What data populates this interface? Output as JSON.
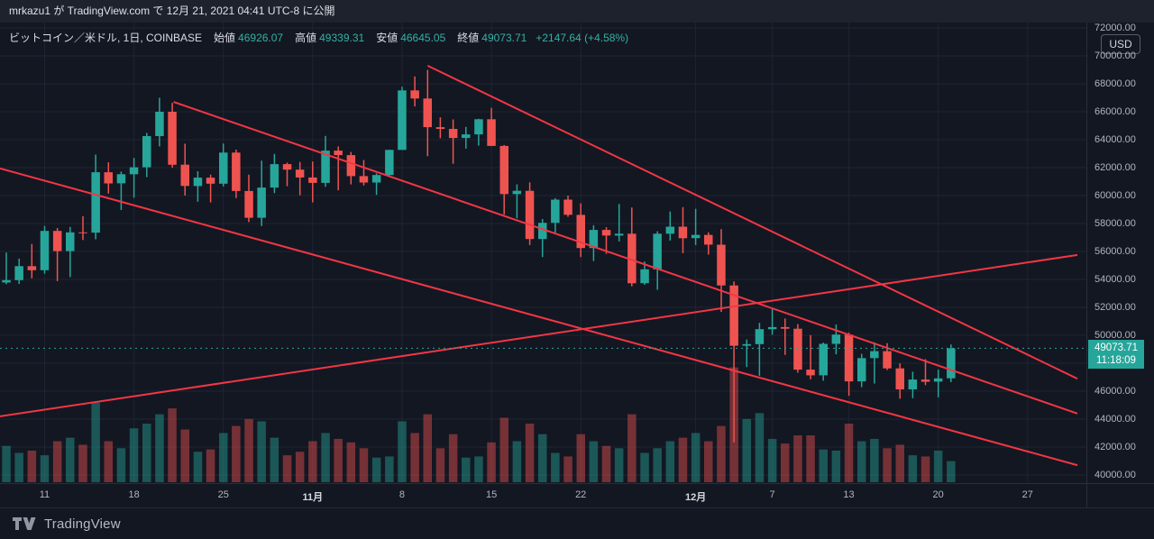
{
  "header": {
    "publish_text": "mrkazu1 が TradingView.com で 12月 21, 2021 04:41 UTC-8 に公開"
  },
  "legend": {
    "symbol_line": "ビットコイン／米ドル, 1日, COINBASE",
    "open_label": "始値",
    "open": "46926.07",
    "high_label": "高値",
    "high": "49339.31",
    "low_label": "安値",
    "low": "46645.05",
    "close_label": "終値",
    "close": "49073.71",
    "change": "+2147.64 (+4.58%)"
  },
  "price_axis": {
    "currency_badge": "USD",
    "last_price": "49073.71",
    "countdown": "11:18:09"
  },
  "footer": {
    "brand": "TradingView"
  },
  "colors": {
    "bg": "#131722",
    "panel": "#1e222d",
    "grid": "#1e2433",
    "up": "#26a69a",
    "down": "#ef5350",
    "trend": "#f23645",
    "axis_text": "#b2b5be",
    "last_price_line": "#26a69a",
    "badge_bg": "#26a69a"
  },
  "chart_data": {
    "type": "candlestick",
    "title": "ビットコイン／米ドル, 1日, COINBASE",
    "ylabel": "USD",
    "ylim": [
      39420,
      72390
    ],
    "y_ticks": [
      40000,
      42000,
      44000,
      46000,
      48000,
      50000,
      52000,
      54000,
      56000,
      58000,
      60000,
      62000,
      64000,
      66000,
      68000,
      70000,
      72000
    ],
    "x_ticks": [
      {
        "index": 3,
        "label": "11",
        "bold": false
      },
      {
        "index": 10,
        "label": "18",
        "bold": false
      },
      {
        "index": 17,
        "label": "25",
        "bold": false
      },
      {
        "index": 24,
        "label": "11月",
        "bold": true
      },
      {
        "index": 31,
        "label": "8",
        "bold": false
      },
      {
        "index": 38,
        "label": "15",
        "bold": false
      },
      {
        "index": 45,
        "label": "22",
        "bold": false
      },
      {
        "index": 54,
        "label": "12月",
        "bold": true
      },
      {
        "index": 60,
        "label": "7",
        "bold": false
      },
      {
        "index": 66,
        "label": "13",
        "bold": false
      },
      {
        "index": 73,
        "label": "20",
        "bold": false
      },
      {
        "index": 80,
        "label": "27",
        "bold": false
      }
    ],
    "candle_fields": [
      "date",
      "open",
      "high",
      "low",
      "close",
      "volume_rel"
    ],
    "candles": [
      [
        "10-08",
        53785,
        55922,
        53661,
        53951,
        0.31
      ],
      [
        "10-09",
        53951,
        55489,
        53675,
        54949,
        0.25
      ],
      [
        "10-10",
        54949,
        56545,
        54080,
        54659,
        0.27
      ],
      [
        "10-11",
        54659,
        57833,
        54415,
        57471,
        0.23
      ],
      [
        "10-12",
        57471,
        57680,
        53879,
        56023,
        0.35
      ],
      [
        "10-13",
        56023,
        57755,
        54167,
        57367,
        0.38
      ],
      [
        "10-14",
        57367,
        58520,
        56818,
        57347,
        0.32
      ],
      [
        "10-15",
        57347,
        62933,
        56868,
        61672,
        0.68
      ],
      [
        "10-16",
        61672,
        62378,
        60150,
        60875,
        0.35
      ],
      [
        "10-17",
        60875,
        61718,
        58963,
        61528,
        0.29
      ],
      [
        "10-18",
        61528,
        62695,
        59844,
        62026,
        0.46
      ],
      [
        "10-19",
        62026,
        64486,
        61322,
        64261,
        0.5
      ],
      [
        "10-20",
        64261,
        66999,
        63520,
        66002,
        0.58
      ],
      [
        "10-21",
        66002,
        66639,
        62000,
        62210,
        0.63
      ],
      [
        "10-22",
        62210,
        63715,
        60000,
        60688,
        0.45
      ],
      [
        "10-23",
        60688,
        61743,
        59562,
        61286,
        0.26
      ],
      [
        "10-24",
        61286,
        61500,
        59510,
        60852,
        0.28
      ],
      [
        "10-25",
        60852,
        63729,
        60650,
        63078,
        0.42
      ],
      [
        "10-26",
        63078,
        63293,
        59817,
        60328,
        0.48
      ],
      [
        "10-27",
        60328,
        61496,
        58100,
        58413,
        0.54
      ],
      [
        "10-28",
        58413,
        62499,
        57820,
        60575,
        0.52
      ],
      [
        "10-29",
        60575,
        62980,
        60174,
        62253,
        0.38
      ],
      [
        "10-30",
        62253,
        62359,
        60673,
        61859,
        0.23
      ],
      [
        "10-31",
        61859,
        62405,
        60025,
        61299,
        0.26
      ],
      [
        "11-01",
        61299,
        62437,
        59508,
        60911,
        0.35
      ],
      [
        "11-02",
        60911,
        64270,
        60624,
        63219,
        0.42
      ],
      [
        "11-03",
        63219,
        63516,
        60382,
        62896,
        0.37
      ],
      [
        "11-04",
        62896,
        63123,
        60799,
        61395,
        0.34
      ],
      [
        "11-05",
        61395,
        62541,
        60721,
        60937,
        0.29
      ],
      [
        "11-06",
        60937,
        61590,
        60050,
        61470,
        0.21
      ],
      [
        "11-07",
        61470,
        63286,
        61322,
        63273,
        0.22
      ],
      [
        "11-08",
        63273,
        67789,
        63273,
        67528,
        0.52
      ],
      [
        "11-09",
        67528,
        68530,
        66382,
        66947,
        0.42
      ],
      [
        "11-10",
        66947,
        69000,
        62822,
        64898,
        0.58
      ],
      [
        "11-11",
        64898,
        65600,
        64100,
        64774,
        0.29
      ],
      [
        "11-12",
        64774,
        65450,
        62278,
        64122,
        0.41
      ],
      [
        "11-13",
        64122,
        64919,
        63360,
        64380,
        0.21
      ],
      [
        "11-14",
        64380,
        65495,
        63576,
        65466,
        0.22
      ],
      [
        "11-15",
        65466,
        66280,
        63548,
        63557,
        0.34
      ],
      [
        "11-16",
        63557,
        63617,
        58638,
        60110,
        0.55
      ],
      [
        "11-17",
        60110,
        60800,
        58373,
        60344,
        0.35
      ],
      [
        "11-18",
        60344,
        60948,
        56458,
        56891,
        0.5
      ],
      [
        "11-19",
        56891,
        58320,
        55600,
        58052,
        0.41
      ],
      [
        "11-20",
        58052,
        59820,
        57353,
        59707,
        0.25
      ],
      [
        "11-21",
        59707,
        60000,
        58486,
        58622,
        0.22
      ],
      [
        "11-22",
        58622,
        59444,
        55600,
        56247,
        0.41
      ],
      [
        "11-23",
        56247,
        57875,
        55317,
        57541,
        0.35
      ],
      [
        "11-24",
        57541,
        57735,
        55837,
        57138,
        0.31
      ],
      [
        "11-25",
        57138,
        59398,
        56719,
        57274,
        0.29
      ],
      [
        "11-26",
        57274,
        59150,
        53500,
        53726,
        0.58
      ],
      [
        "11-27",
        53726,
        55280,
        53610,
        54721,
        0.25
      ],
      [
        "11-28",
        54721,
        57445,
        53256,
        57274,
        0.29
      ],
      [
        "11-29",
        57274,
        58865,
        56780,
        57776,
        0.35
      ],
      [
        "11-30",
        57776,
        59176,
        55875,
        56950,
        0.38
      ],
      [
        "12-01",
        56950,
        59053,
        56458,
        57184,
        0.42
      ],
      [
        "12-02",
        57184,
        57375,
        55777,
        56485,
        0.35
      ],
      [
        "12-03",
        56485,
        57600,
        51680,
        53569,
        0.48
      ],
      [
        "12-04",
        53569,
        53859,
        42333,
        49253,
        0.98
      ],
      [
        "12-05",
        49253,
        49699,
        47727,
        49368,
        0.54
      ],
      [
        "12-06",
        49368,
        50891,
        47100,
        50441,
        0.59
      ],
      [
        "12-07",
        50441,
        51936,
        50039,
        50588,
        0.37
      ],
      [
        "12-08",
        50588,
        51200,
        48600,
        50471,
        0.33
      ],
      [
        "12-09",
        50471,
        50797,
        47320,
        47545,
        0.4
      ],
      [
        "12-10",
        47545,
        50015,
        46852,
        47140,
        0.4
      ],
      [
        "12-11",
        47140,
        49485,
        46751,
        49389,
        0.28
      ],
      [
        "12-12",
        49389,
        50777,
        48638,
        50053,
        0.27
      ],
      [
        "12-13",
        50053,
        50189,
        45672,
        46702,
        0.5
      ],
      [
        "12-14",
        46702,
        48675,
        46290,
        48368,
        0.35
      ],
      [
        "12-15",
        48368,
        49500,
        46547,
        48864,
        0.37
      ],
      [
        "12-16",
        48864,
        49436,
        47511,
        47632,
        0.29
      ],
      [
        "12-17",
        47632,
        47995,
        45456,
        46131,
        0.32
      ],
      [
        "12-18",
        46131,
        47392,
        45500,
        46834,
        0.23
      ],
      [
        "12-19",
        46834,
        48300,
        46434,
        46681,
        0.22
      ],
      [
        "12-20",
        46681,
        47537,
        45558,
        46914,
        0.27
      ],
      [
        "12-21",
        46926.07,
        49339.31,
        46645.05,
        49073.71,
        0.18
      ]
    ],
    "trendlines": [
      {
        "i1": 33.0,
        "p1": 69300,
        "i2": 83.9,
        "p2": 46900
      },
      {
        "i1": 13.1,
        "p1": 66700,
        "i2": 83.9,
        "p2": 44400
      },
      {
        "i1": -0.5,
        "p1": 61950,
        "i2": 83.9,
        "p2": 40700
      },
      {
        "i1": -0.5,
        "p1": 44200,
        "i2": 83.9,
        "p2": 55750
      }
    ],
    "last_price": 49073.71,
    "legend_position": "top-left",
    "grid": true
  }
}
